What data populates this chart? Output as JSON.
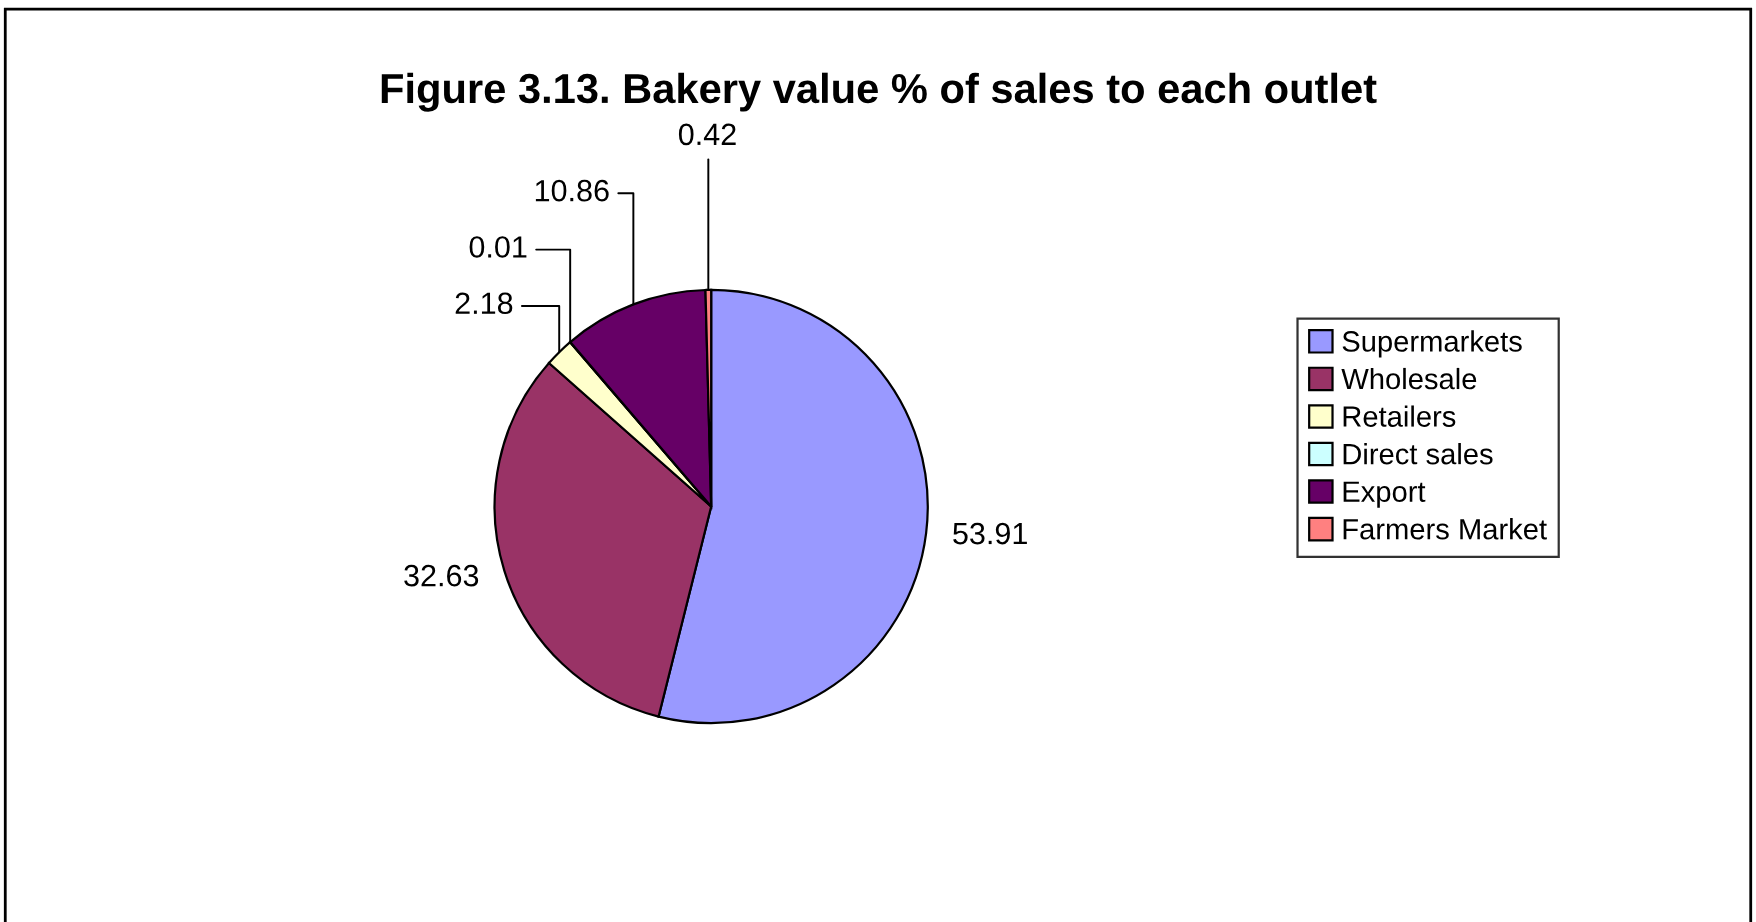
{
  "chart_data": {
    "type": "pie",
    "title": "Figure 3.13. Bakery value % of sales to each outlet",
    "categories": [
      "Supermarkets",
      "Wholesale",
      "Retailers",
      "Direct sales",
      "Export",
      "Farmers Market"
    ],
    "values": [
      53.91,
      32.63,
      2.18,
      0.01,
      10.86,
      0.42
    ],
    "colors": [
      "#9999ff",
      "#993366",
      "#ffffcc",
      "#ccffff",
      "#660066",
      "#ff8080"
    ],
    "data_labels": true,
    "legend": "right"
  }
}
